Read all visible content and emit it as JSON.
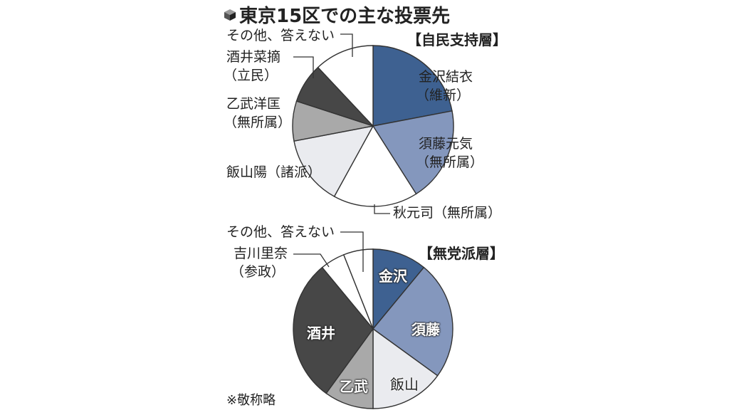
{
  "title": "東京15区での主な投票先",
  "footnote": "※敬称略",
  "colors": {
    "kanazawa": "#3e6191",
    "sudo": "#8497bd",
    "akimoto": "#ffffff",
    "iiyama": "#eaebef",
    "ototake": "#a9a9a9",
    "sakai": "#474747",
    "yoshikawa": "#ffffff",
    "other": "#ffffff",
    "outline": "#333333"
  },
  "top": {
    "group_label": "【自民支持層】",
    "labels": {
      "kanazawa_name": "金沢結衣",
      "kanazawa_party": "（維新）",
      "sudo_name": "須藤元気",
      "sudo_party": "（無所属）",
      "akimoto": "秋元司（無所属）",
      "iiyama": "飯山陽（諸派）",
      "ototake_name": "乙武洋匡",
      "ototake_party": "（無所属）",
      "sakai_name": "酒井菜摘",
      "sakai_party": "（立民）",
      "other": "その他、答えない"
    }
  },
  "bottom": {
    "group_label": "【無党派層】",
    "labels": {
      "kanazawa": "金沢",
      "sudo": "須藤",
      "iiyama": "飯山",
      "ototake": "乙武",
      "sakai": "酒井",
      "yoshikawa_name": "吉川里奈",
      "yoshikawa_party": "（参政）",
      "other": "その他、答えない"
    }
  },
  "chart_data": [
    {
      "type": "pie",
      "title": "東京15区での主な投票先 【自民支持層】",
      "categories": [
        "金沢結衣（維新）",
        "須藤元気（無所属）",
        "秋元司（無所属）",
        "飯山陽（諸派）",
        "乙武洋匡（無所属）",
        "酒井菜摘（立民）",
        "その他、答えない"
      ],
      "values": [
        22,
        19,
        17,
        14,
        8,
        8,
        12
      ],
      "unit": "approx. % (estimated from slice angles; no values printed)",
      "start_angle": "12 o'clock, clockwise"
    },
    {
      "type": "pie",
      "title": "東京15区での主な投票先 【無党派層】",
      "categories": [
        "金沢",
        "須藤",
        "飯山",
        "乙武",
        "酒井",
        "吉川里奈（参政）",
        "その他、答えない"
      ],
      "values": [
        11,
        24,
        15,
        10,
        29,
        5,
        6
      ],
      "unit": "approx. % (estimated from slice angles; no values printed)",
      "start_angle": "12 o'clock, clockwise"
    }
  ]
}
